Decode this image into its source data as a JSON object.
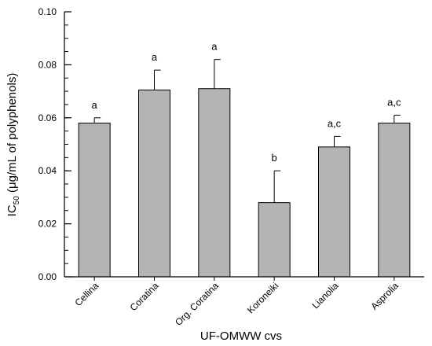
{
  "chart_data": {
    "type": "bar",
    "xlabel": "UF-OMWW cvs",
    "ylabel": {
      "main": "IC",
      "sub": "50",
      "rest": " (μg/mL of polyphenols)"
    },
    "categories": [
      "Cellina",
      "Coratina",
      "Org. Coratina",
      "Koroneiki",
      "Lianolia",
      "Asprolia"
    ],
    "values": [
      0.058,
      0.0705,
      0.071,
      0.028,
      0.049,
      0.058
    ],
    "errors": [
      0.002,
      0.0075,
      0.011,
      0.012,
      0.004,
      0.003
    ],
    "significance": [
      "a",
      "a",
      "a",
      "b",
      "a,c",
      "a,c"
    ],
    "ylim": [
      0,
      0.1
    ],
    "yticks": [
      "0.00",
      "0.02",
      "0.04",
      "0.06",
      "0.08",
      "0.10"
    ],
    "grid": false,
    "bar_color": "#b4b4b4"
  }
}
